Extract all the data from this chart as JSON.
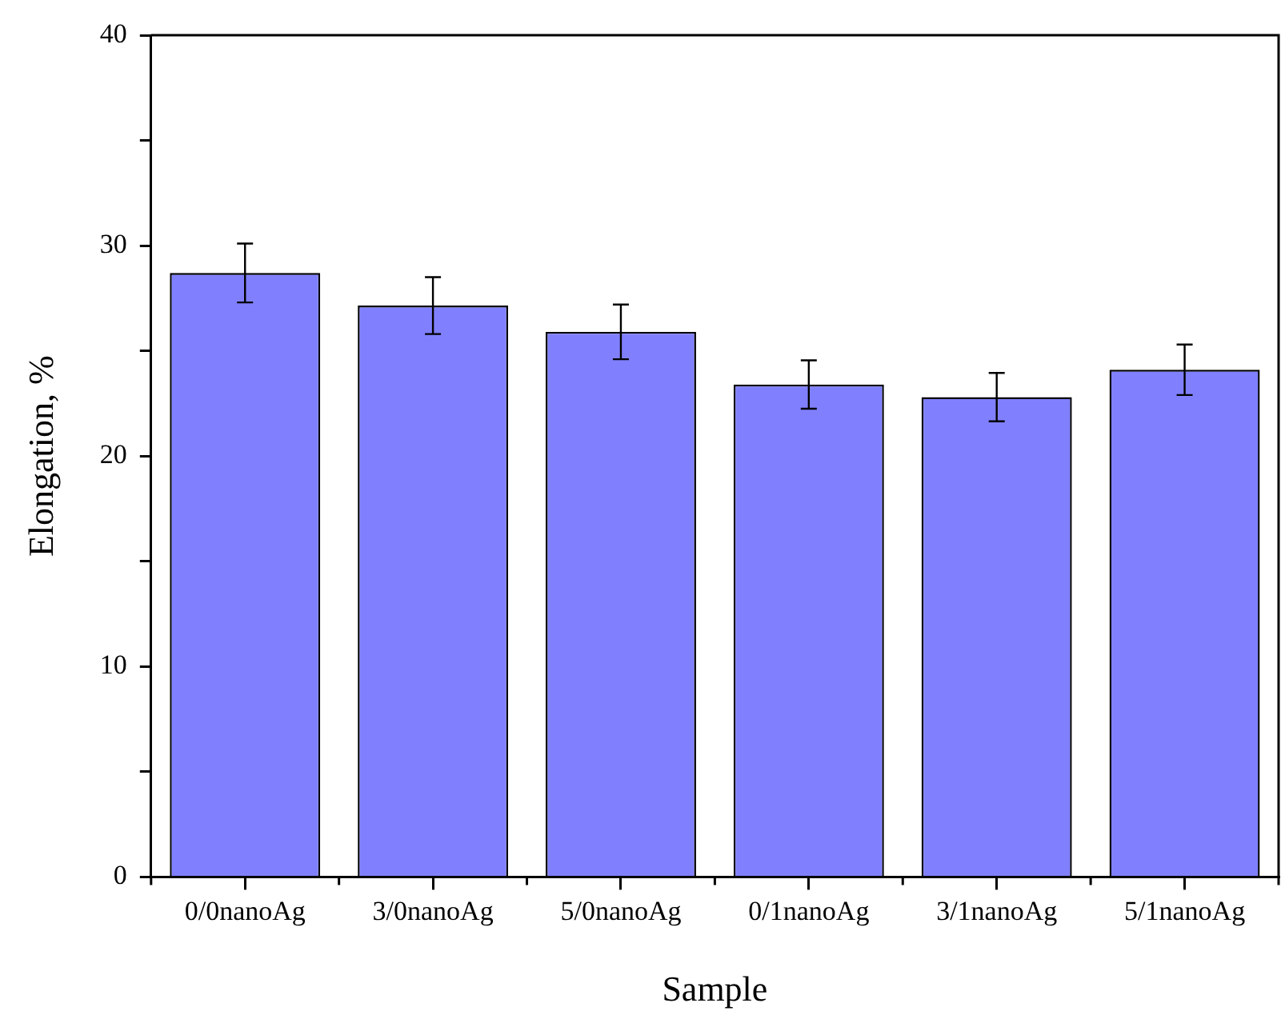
{
  "chart_data": {
    "type": "bar",
    "xlabel": "Sample",
    "ylabel": "Elongation, %",
    "categories": [
      "0/0nanoAg",
      "3/0nanoAg",
      "5/0nanoAg",
      "0/1nanoAg",
      "3/1nanoAg",
      "5/1nanoAg"
    ],
    "values": [
      28.7,
      27.15,
      25.9,
      23.4,
      22.8,
      24.1
    ],
    "errors": [
      1.4,
      1.35,
      1.3,
      1.15,
      1.15,
      1.2
    ],
    "color": "#8080ff",
    "ylim": [
      0,
      40
    ],
    "yticks": [
      0,
      {
        "value": 5,
        "label": null
      },
      10,
      {
        "value": 15,
        "label": null
      },
      20,
      {
        "value": 25,
        "label": null
      },
      30,
      {
        "value": 35,
        "label": null
      },
      40
    ],
    "grid": false,
    "legend": false
  }
}
